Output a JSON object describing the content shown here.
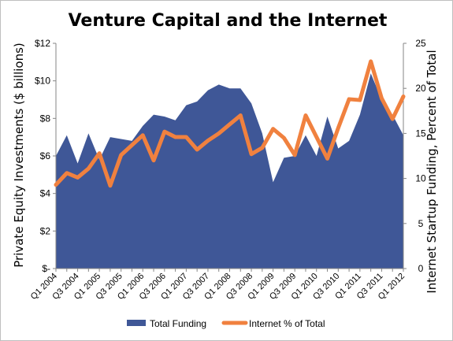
{
  "chart_data": {
    "type": "area+line",
    "title": "Venture Capital and the Internet",
    "ylabel_left": "Private Equity Investments ($ billions)",
    "ylabel_right": "Internet Startup Funding, Percent of Total",
    "y_left": {
      "min": 0,
      "max": 12,
      "step": 2,
      "tick_labels": [
        "$-",
        "$2",
        "$4",
        "$6",
        "$8",
        "$10",
        "$12"
      ]
    },
    "y_right": {
      "min": 0,
      "max": 25,
      "step": 5,
      "tick_labels": [
        "0",
        "5",
        "10",
        "15",
        "20",
        "25"
      ]
    },
    "x": [
      "Q1 2004",
      "Q2 2004",
      "Q3 2004",
      "Q4 2004",
      "Q1 2005",
      "Q2 2005",
      "Q3 2005",
      "Q4 2005",
      "Q1 2006",
      "Q2 2006",
      "Q3 2006",
      "Q4 2006",
      "Q1 2007",
      "Q2 2007",
      "Q3 2007",
      "Q4 2007",
      "Q1 2008",
      "Q2 2008",
      "Q3 2008",
      "Q4 2008",
      "Q1 2009",
      "Q2 2009",
      "Q3 2009",
      "Q4 2009",
      "Q1 2010",
      "Q2 2010",
      "Q3 2010",
      "Q4 2010",
      "Q1 2011",
      "Q2 2011",
      "Q3 2011",
      "Q4 2011",
      "Q1 2012"
    ],
    "x_tick_labels": [
      "Q1 2004",
      "Q3 2004",
      "Q1 2005",
      "Q3 2005",
      "Q1 2006",
      "Q3 2006",
      "Q1 2007",
      "Q3 2007",
      "Q1 2008",
      "Q3 2008",
      "Q1 2009",
      "Q3 2009",
      "Q1 2010",
      "Q3 2010",
      "Q1 2011",
      "Q3 2011",
      "Q1 2012"
    ],
    "series": [
      {
        "name": "Total Funding",
        "kind": "area",
        "axis": "left",
        "color": "#3f5797",
        "values": [
          6.0,
          7.1,
          5.6,
          7.2,
          5.8,
          7.0,
          6.9,
          6.8,
          7.6,
          8.2,
          8.1,
          7.9,
          8.7,
          8.9,
          9.5,
          9.8,
          9.6,
          9.6,
          8.8,
          7.2,
          4.6,
          5.9,
          6.0,
          7.1,
          6.0,
          8.1,
          6.4,
          6.8,
          8.2,
          10.4,
          9.0,
          8.2,
          7.1
        ]
      },
      {
        "name": "Internet % of Total",
        "kind": "line",
        "axis": "right",
        "color": "#f0813f",
        "values": [
          9.3,
          10.6,
          10.1,
          11.1,
          12.8,
          9.2,
          12.6,
          13.7,
          14.8,
          12.0,
          15.2,
          14.6,
          14.6,
          13.2,
          14.2,
          15.0,
          16.0,
          17.0,
          12.7,
          13.4,
          15.5,
          14.5,
          12.6,
          17.0,
          14.6,
          12.2,
          15.6,
          18.8,
          18.7,
          23.0,
          18.9,
          16.6,
          19.1
        ]
      }
    ],
    "legend": {
      "position": "bottom"
    }
  }
}
